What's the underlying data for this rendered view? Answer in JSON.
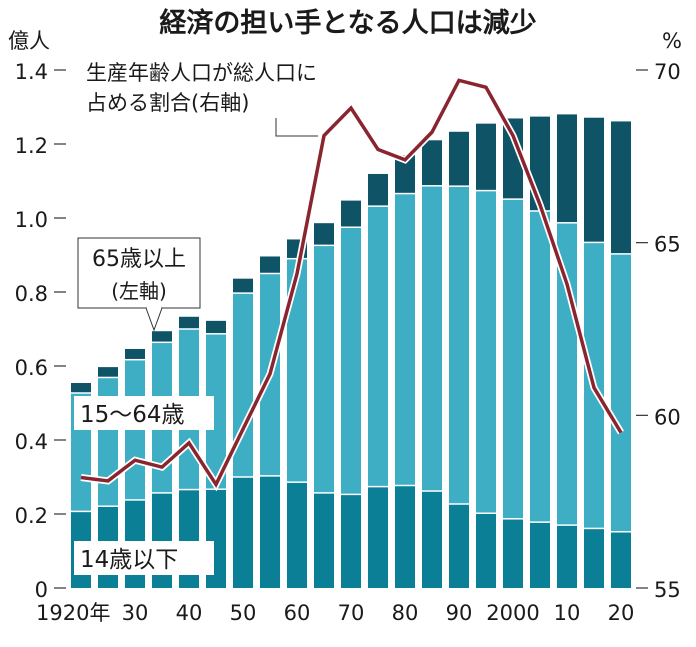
{
  "chart_data": {
    "type": "bar+line",
    "title": "経済の担い手となる人口は減少",
    "left_unit": "億人",
    "right_unit": "%",
    "left_ylim": [
      0,
      1.4
    ],
    "right_ylim": [
      55,
      70
    ],
    "left_ticks": [
      "0",
      "0.2",
      "0.4",
      "0.6",
      "0.8",
      "1.0",
      "1.2",
      "1.4"
    ],
    "right_ticks": [
      "55",
      "60",
      "65",
      "70"
    ],
    "x_tick_labels": [
      "1920年",
      "30",
      "40",
      "50",
      "60",
      "70",
      "80",
      "90",
      "2000",
      "10",
      "20"
    ],
    "years": [
      1920,
      1925,
      1930,
      1935,
      1940,
      1945,
      1950,
      1955,
      1960,
      1965,
      1970,
      1975,
      1980,
      1985,
      1990,
      1995,
      2000,
      2005,
      2010,
      2015,
      2020
    ],
    "stack_series": [
      {
        "name": "14歳以下",
        "color": "#0b7f96",
        "values": [
          0.205,
          0.219,
          0.236,
          0.255,
          0.264,
          0.265,
          0.298,
          0.301,
          0.284,
          0.255,
          0.251,
          0.272,
          0.275,
          0.26,
          0.225,
          0.2,
          0.185,
          0.176,
          0.168,
          0.159,
          0.15
        ]
      },
      {
        "name": "15〜64歳",
        "color": "#3eaec4",
        "values": [
          0.32,
          0.348,
          0.379,
          0.407,
          0.434,
          0.42,
          0.497,
          0.547,
          0.604,
          0.669,
          0.722,
          0.758,
          0.789,
          0.825,
          0.859,
          0.872,
          0.864,
          0.841,
          0.817,
          0.773,
          0.751
        ]
      },
      {
        "name": "65歳以上",
        "sublabel": "(左軸)",
        "color": "#0e5466",
        "values": [
          0.029,
          0.03,
          0.031,
          0.032,
          0.035,
          0.037,
          0.041,
          0.048,
          0.054,
          0.062,
          0.074,
          0.089,
          0.106,
          0.125,
          0.149,
          0.183,
          0.22,
          0.257,
          0.295,
          0.339,
          0.36
        ]
      }
    ],
    "line_series": {
      "name_line1": "生産年齢人口が総人口に",
      "name_line2": "占める割合(右軸)",
      "color": "#8a2530",
      "values": [
        58.2,
        58.1,
        58.7,
        58.5,
        59.2,
        58.0,
        59.6,
        61.2,
        64.1,
        68.1,
        68.9,
        67.7,
        67.4,
        68.2,
        69.7,
        69.5,
        68.1,
        66.1,
        63.8,
        60.8,
        59.5
      ]
    }
  }
}
